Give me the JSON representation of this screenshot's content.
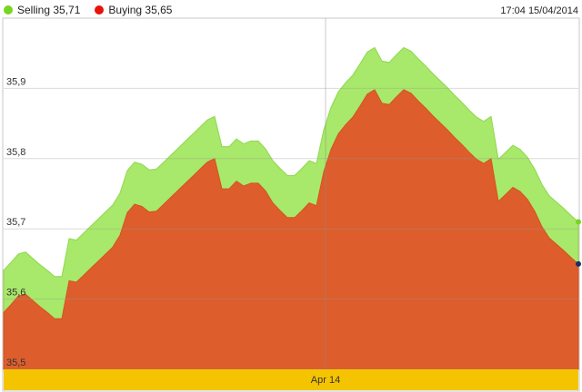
{
  "header": {
    "timestamp": "17:04 15/04/2014"
  },
  "colors": {
    "selling": "#77d61e",
    "buying": "#e8120c",
    "selling_fill": "#a8e86a",
    "buying_fill": "#dd5e2c",
    "date_band": "#f5c400",
    "last_buying_marker": "#1a2e66"
  },
  "chart_data": {
    "type": "area",
    "ylim": [
      35.5,
      36.0
    ],
    "yticks": [
      "35,5",
      "35,6",
      "35,7",
      "35,8",
      "35,9"
    ],
    "ytick_values": [
      35.5,
      35.6,
      35.7,
      35.8,
      35.9
    ],
    "x_band_label": "Apr 14",
    "grid": true,
    "legend": "top-left",
    "series": [
      {
        "name": "Selling",
        "label": "Selling 35,71",
        "last": "35,71",
        "values": [
          35.641,
          35.652,
          35.664,
          35.667,
          35.658,
          35.649,
          35.641,
          35.632,
          35.632,
          35.686,
          35.684,
          35.694,
          35.704,
          35.714,
          35.724,
          35.734,
          35.751,
          35.783,
          35.795,
          35.792,
          35.784,
          35.785,
          35.795,
          35.805,
          35.815,
          35.825,
          35.835,
          35.845,
          35.855,
          35.86,
          35.817,
          35.817,
          35.828,
          35.821,
          35.825,
          35.825,
          35.814,
          35.797,
          35.786,
          35.776,
          35.776,
          35.786,
          35.797,
          35.793,
          35.841,
          35.873,
          35.895,
          35.908,
          35.919,
          35.935,
          35.952,
          35.958,
          35.939,
          35.937,
          35.948,
          35.958,
          35.953,
          35.942,
          35.932,
          35.921,
          35.911,
          35.901,
          35.89,
          35.88,
          35.869,
          35.859,
          35.853,
          35.86,
          35.799,
          35.809,
          35.819,
          35.813,
          35.802,
          35.785,
          35.763,
          35.747,
          35.738,
          35.729,
          35.719,
          35.71
        ]
      },
      {
        "name": "Buying",
        "label": "Buying 35,65",
        "last": "35,65",
        "values": [
          35.581,
          35.592,
          35.604,
          35.607,
          35.598,
          35.589,
          35.581,
          35.572,
          35.572,
          35.626,
          35.624,
          35.634,
          35.644,
          35.654,
          35.664,
          35.674,
          35.691,
          35.723,
          35.735,
          35.732,
          35.724,
          35.725,
          35.735,
          35.745,
          35.755,
          35.765,
          35.775,
          35.785,
          35.795,
          35.8,
          35.757,
          35.757,
          35.768,
          35.761,
          35.765,
          35.765,
          35.754,
          35.737,
          35.726,
          35.716,
          35.716,
          35.726,
          35.737,
          35.733,
          35.781,
          35.813,
          35.835,
          35.848,
          35.859,
          35.875,
          35.892,
          35.898,
          35.879,
          35.877,
          35.888,
          35.898,
          35.893,
          35.882,
          35.872,
          35.861,
          35.851,
          35.841,
          35.83,
          35.82,
          35.809,
          35.799,
          35.793,
          35.8,
          35.739,
          35.749,
          35.759,
          35.753,
          35.742,
          35.725,
          35.703,
          35.687,
          35.678,
          35.669,
          35.659,
          35.65
        ]
      }
    ]
  }
}
